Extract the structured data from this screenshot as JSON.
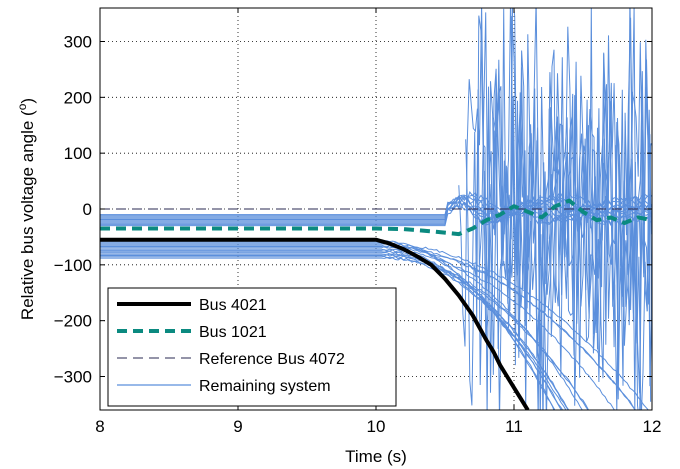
{
  "chart_data": {
    "type": "line",
    "xlabel": "Time (s)",
    "ylabel": "Relative bus voltage angle (",
    "ylabel_sup": "o",
    "ylabel_close": ")",
    "xlim": [
      8,
      12
    ],
    "ylim": [
      -360,
      360
    ],
    "xticks": [
      8,
      9,
      10,
      11,
      12
    ],
    "yticks": [
      -300,
      -200,
      -100,
      0,
      100,
      200,
      300
    ],
    "xtick_labels": [
      "8",
      "9",
      "10",
      "11",
      "12"
    ],
    "ytick_labels": [
      "−300",
      "−200",
      "−100",
      "0",
      "100",
      "200",
      "300"
    ],
    "grid": true,
    "legend_position": "bottom-left",
    "series": [
      {
        "name": "Bus 4021",
        "color": "#000000",
        "style": "solid-thick",
        "x": [
          8,
          9,
          10,
          10.1,
          10.2,
          10.3,
          10.4,
          10.5,
          10.6,
          10.7,
          10.8,
          10.85,
          10.9,
          10.95,
          11.0,
          11.05,
          11.1
        ],
        "y": [
          -55,
          -55,
          -55,
          -62,
          -72,
          -85,
          -100,
          -125,
          -155,
          -190,
          -235,
          -255,
          -280,
          -300,
          -320,
          -340,
          -360
        ]
      },
      {
        "name": "Bus 1021",
        "color": "#0b8a80",
        "style": "dashed-thick",
        "x": [
          8,
          9,
          10,
          10.2,
          10.4,
          10.6,
          10.7,
          10.8,
          10.9,
          11.0,
          11.1,
          11.2,
          11.3,
          11.4,
          11.5,
          11.6,
          11.7,
          11.8,
          11.9,
          12.0
        ],
        "y": [
          -35,
          -35,
          -35,
          -36,
          -40,
          -45,
          -35,
          -20,
          -10,
          5,
          -5,
          -15,
          5,
          15,
          -5,
          -20,
          -15,
          -25,
          -15,
          -20
        ]
      },
      {
        "name": "Reference Bus 4072",
        "color": "#2a2a50",
        "style": "dashed-thin",
        "x": [
          8,
          12
        ],
        "y": [
          0,
          0
        ]
      },
      {
        "name": "Remaining system",
        "color": "#5b8fdc",
        "style": "solid-thin",
        "x": [
          8,
          9,
          10,
          10.2,
          10.4,
          10.6,
          10.8,
          11.0,
          11.2,
          11.4,
          11.6,
          11.8,
          12.0
        ],
        "y": [
          -75,
          -75,
          -75,
          -85,
          -105,
          -150,
          -210,
          -260,
          -300,
          -330,
          -350,
          -360,
          -360
        ]
      }
    ]
  },
  "legend": {
    "items": [
      {
        "label": "Bus 4021"
      },
      {
        "label": "Bus 1021"
      },
      {
        "label": "Reference Bus 4072"
      },
      {
        "label": "Remaining system"
      }
    ]
  }
}
